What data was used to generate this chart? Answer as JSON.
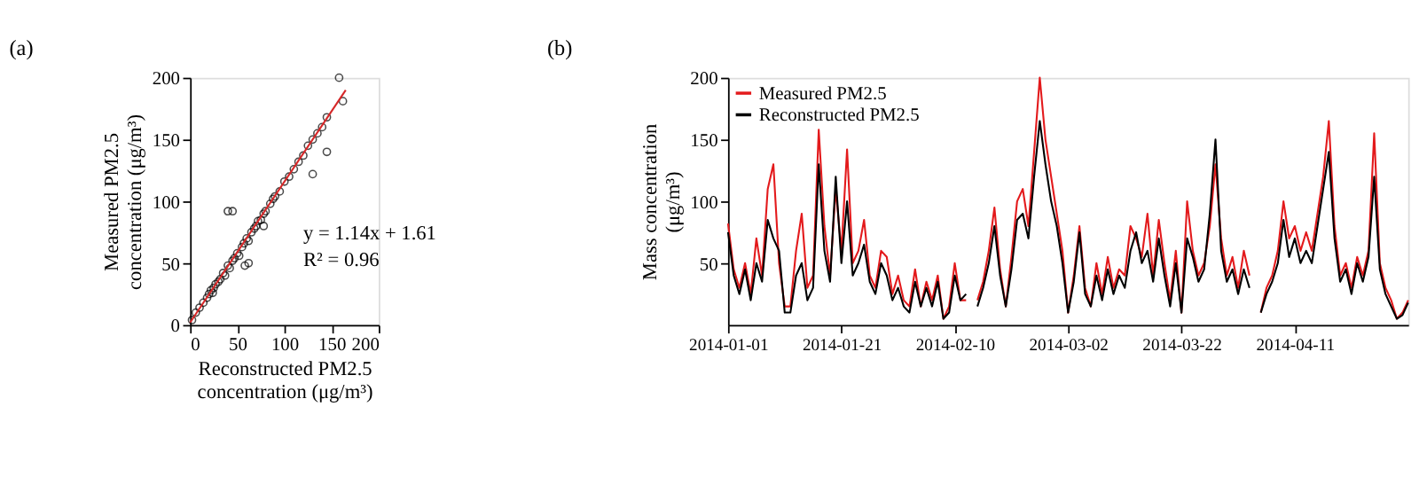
{
  "chart_data": [
    {
      "type": "scatter",
      "title": "(a)",
      "xlabel": "Reconstructed PM2.5 concentration (μg/m³)",
      "ylabel": "Measured PM2.5 concentration (μg/m³)",
      "xlim": [
        0,
        200
      ],
      "xticks": [
        0,
        50,
        100,
        150,
        200
      ],
      "ylim": [
        0,
        200
      ],
      "yticks": [
        0,
        50,
        100,
        150,
        200
      ],
      "grid": false,
      "annotations": [
        "y = 1.14x + 1.61",
        "R² = 0.96"
      ],
      "series": [
        {
          "type": "scatter",
          "marker": "circle",
          "color": "#000000",
          "x": [
            2,
            6,
            10,
            14,
            18,
            20,
            22,
            24,
            25,
            27,
            30,
            32,
            35,
            37,
            40,
            42,
            45,
            47,
            50,
            52,
            55,
            57,
            60,
            62,
            65,
            68,
            70,
            72,
            75,
            78,
            80,
            85,
            88,
            90,
            95,
            100,
            105,
            110,
            115,
            120,
            125,
            130,
            135,
            140,
            145,
            145,
            158,
            162,
            40,
            45,
            58,
            62,
            78,
            130
          ],
          "values": [
            4,
            10,
            14,
            18,
            22,
            25,
            28,
            26,
            30,
            33,
            35,
            37,
            42,
            40,
            48,
            46,
            52,
            54,
            58,
            56,
            63,
            66,
            70,
            68,
            75,
            78,
            80,
            84,
            85,
            90,
            92,
            98,
            102,
            104,
            108,
            116,
            120,
            126,
            132,
            137,
            145,
            150,
            155,
            160,
            140,
            168,
            200,
            181,
            92,
            92,
            48,
            50,
            80,
            122
          ]
        },
        {
          "type": "line",
          "color": "#d62728",
          "x": [
            0,
            165
          ],
          "values": [
            2,
            190
          ]
        }
      ]
    },
    {
      "type": "line",
      "title": "(b)",
      "ylabel": "Mass concentration (μg/m³)",
      "xlim": [
        "2014-01-01",
        "2014-05-01"
      ],
      "xticks": [
        "2014-01-01",
        "2014-01-21",
        "2014-02-10",
        "2014-03-02",
        "2014-03-22",
        "2014-04-11"
      ],
      "ylim": [
        0,
        200
      ],
      "yticks": [
        50,
        100,
        150,
        200
      ],
      "grid": false,
      "legend": "top left",
      "x": [
        "2014-01-01",
        "2014-01-02",
        "2014-01-03",
        "2014-01-04",
        "2014-01-05",
        "2014-01-06",
        "2014-01-07",
        "2014-01-08",
        "2014-01-09",
        "2014-01-10",
        "2014-01-11",
        "2014-01-12",
        "2014-01-13",
        "2014-01-14",
        "2014-01-15",
        "2014-01-16",
        "2014-01-17",
        "2014-01-18",
        "2014-01-19",
        "2014-01-20",
        "2014-01-21",
        "2014-01-22",
        "2014-01-23",
        "2014-01-24",
        "2014-01-25",
        "2014-01-26",
        "2014-01-27",
        "2014-01-28",
        "2014-01-29",
        "2014-01-30",
        "2014-01-31",
        "2014-02-01",
        "2014-02-02",
        "2014-02-03",
        "2014-02-04",
        "2014-02-05",
        "2014-02-06",
        "2014-02-07",
        "2014-02-08",
        "2014-02-09",
        "2014-02-10",
        "2014-02-11",
        "2014-02-12",
        "2014-02-13",
        "2014-02-14",
        "2014-02-15",
        "2014-02-16",
        "2014-02-17",
        "2014-02-18",
        "2014-02-19",
        "2014-02-20",
        "2014-02-21",
        "2014-02-22",
        "2014-02-23",
        "2014-02-24",
        "2014-02-25",
        "2014-02-26",
        "2014-02-27",
        "2014-02-28",
        "2014-03-01",
        "2014-03-02",
        "2014-03-03",
        "2014-03-04",
        "2014-03-05",
        "2014-03-06",
        "2014-03-07",
        "2014-03-08",
        "2014-03-09",
        "2014-03-10",
        "2014-03-11",
        "2014-03-12",
        "2014-03-13",
        "2014-03-14",
        "2014-03-15",
        "2014-03-16",
        "2014-03-17",
        "2014-03-18",
        "2014-03-19",
        "2014-03-20",
        "2014-03-21",
        "2014-03-22",
        "2014-03-23",
        "2014-03-24",
        "2014-03-25",
        "2014-03-26",
        "2014-03-27",
        "2014-03-28",
        "2014-03-29",
        "2014-03-30",
        "2014-03-31",
        "2014-04-01",
        "2014-04-02",
        "2014-04-03",
        "2014-04-04",
        "2014-04-05",
        "2014-04-06",
        "2014-04-07",
        "2014-04-08",
        "2014-04-09",
        "2014-04-10",
        "2014-04-11",
        "2014-04-12",
        "2014-04-13",
        "2014-04-14",
        "2014-04-15",
        "2014-04-16",
        "2014-04-17",
        "2014-04-18",
        "2014-04-19",
        "2014-04-20",
        "2014-04-21",
        "2014-04-22",
        "2014-04-23",
        "2014-04-24",
        "2014-04-25",
        "2014-04-26",
        "2014-04-27",
        "2014-04-28",
        "2014-04-29",
        "2014-04-30",
        "2014-05-01"
      ],
      "series": [
        {
          "name": "Measured PM2.5",
          "color": "#e31a1c",
          "values": [
            82,
            45,
            30,
            50,
            25,
            70,
            40,
            110,
            130,
            50,
            15,
            15,
            60,
            90,
            30,
            40,
            158,
            80,
            40,
            110,
            60,
            142,
            50,
            60,
            85,
            40,
            30,
            60,
            55,
            25,
            40,
            20,
            15,
            45,
            15,
            35,
            20,
            40,
            5,
            15,
            50,
            20,
            20,
            null,
            20,
            35,
            60,
            95,
            45,
            15,
            55,
            100,
            110,
            80,
            140,
            200,
            150,
            120,
            90,
            60,
            10,
            40,
            80,
            30,
            15,
            50,
            25,
            55,
            30,
            45,
            40,
            80,
            70,
            55,
            90,
            40,
            85,
            50,
            20,
            60,
            10,
            100,
            60,
            40,
            50,
            80,
            130,
            70,
            40,
            55,
            30,
            60,
            40,
            null,
            10,
            30,
            40,
            60,
            100,
            70,
            80,
            60,
            75,
            60,
            90,
            120,
            165,
            80,
            40,
            50,
            30,
            55,
            40,
            60,
            155,
            50,
            30,
            20,
            5,
            10,
            20
          ]
        },
        {
          "name": "Reconstructed PM2.5",
          "color": "#000000",
          "values": [
            75,
            40,
            25,
            45,
            20,
            50,
            35,
            85,
            70,
            60,
            10,
            10,
            40,
            50,
            20,
            30,
            130,
            60,
            35,
            120,
            50,
            100,
            40,
            50,
            65,
            35,
            25,
            50,
            40,
            20,
            30,
            15,
            10,
            35,
            15,
            30,
            15,
            35,
            5,
            10,
            40,
            20,
            25,
            null,
            15,
            30,
            50,
            80,
            40,
            15,
            45,
            85,
            90,
            70,
            120,
            165,
            130,
            100,
            80,
            50,
            10,
            35,
            75,
            25,
            15,
            40,
            20,
            45,
            25,
            40,
            30,
            60,
            75,
            50,
            60,
            35,
            70,
            40,
            15,
            50,
            10,
            70,
            55,
            35,
            45,
            90,
            150,
            60,
            35,
            45,
            25,
            45,
            30,
            null,
            10,
            25,
            35,
            50,
            85,
            55,
            70,
            50,
            60,
            50,
            80,
            110,
            140,
            70,
            35,
            45,
            25,
            50,
            35,
            55,
            120,
            45,
            25,
            15,
            5,
            8,
            18
          ]
        }
      ]
    }
  ]
}
